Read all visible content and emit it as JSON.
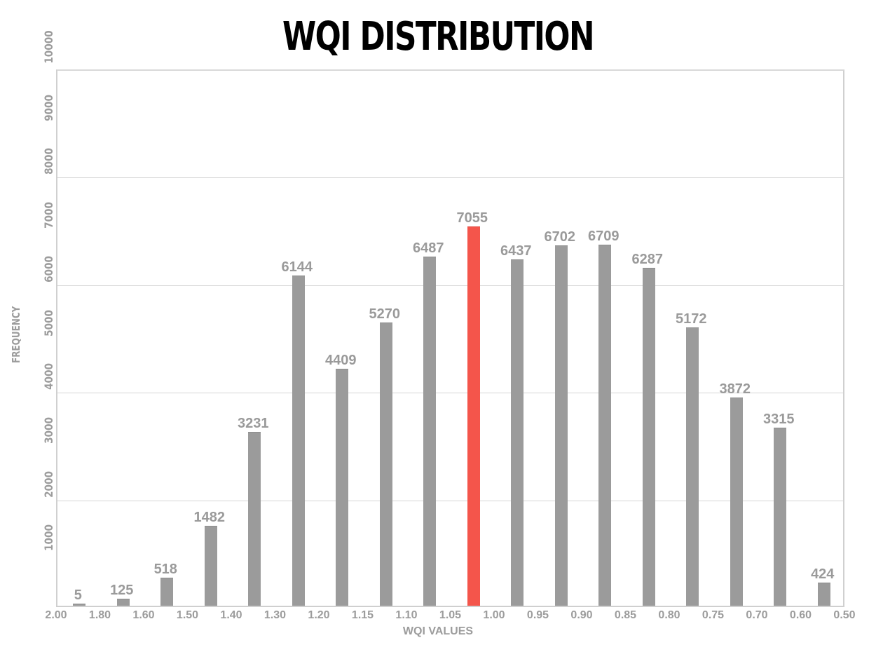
{
  "chart_data": {
    "type": "bar",
    "title": "WQI DISTRIBUTION",
    "xlabel": "WQI VALUES",
    "ylabel": "FREQUENCY",
    "ylim": [
      0,
      10000
    ],
    "grid": true,
    "legend": null,
    "x_tick_labels": [
      "2.00",
      "1.80",
      "1.60",
      "1.50",
      "1.40",
      "1.30",
      "1.20",
      "1.15",
      "1.10",
      "1.05",
      "1.00",
      "0.95",
      "0.90",
      "0.85",
      "0.80",
      "0.75",
      "0.70",
      "0.60",
      "0.50"
    ],
    "y_tick_labels": [
      "1000",
      "2000",
      "3000",
      "4000",
      "5000",
      "6000",
      "7000",
      "8000",
      "9000",
      "10000"
    ],
    "gridlines": [
      2000,
      4000,
      6000,
      8000,
      10000
    ],
    "categories": [
      "2.00-1.80",
      "1.80-1.60",
      "1.60-1.50",
      "1.50-1.40",
      "1.40-1.30",
      "1.30-1.20",
      "1.20-1.15",
      "1.15-1.10",
      "1.10-1.05",
      "1.05-1.00",
      "1.00-0.95",
      "0.95-0.90",
      "0.90-0.85",
      "0.85-0.80",
      "0.80-0.75",
      "0.75-0.70",
      "0.70-0.60",
      "0.60-0.50"
    ],
    "values": [
      5,
      125,
      518,
      1482,
      3231,
      6144,
      4409,
      5270,
      6487,
      7055,
      6437,
      6702,
      6709,
      6287,
      5172,
      3872,
      3315,
      424
    ],
    "value_labels": [
      "5",
      "125",
      "518",
      "1482",
      "3231",
      "6144",
      "4409",
      "5270",
      "6487",
      "7055",
      "6437",
      "6702",
      "6709",
      "6287",
      "5172",
      "3872",
      "3315",
      "424"
    ],
    "highlight_index": 9,
    "colors": {
      "bar": "#9b9b9b",
      "highlight": "#f4554b",
      "label": "#9a9a9a",
      "grid": "#d6d6d6",
      "title": "#000000"
    }
  }
}
